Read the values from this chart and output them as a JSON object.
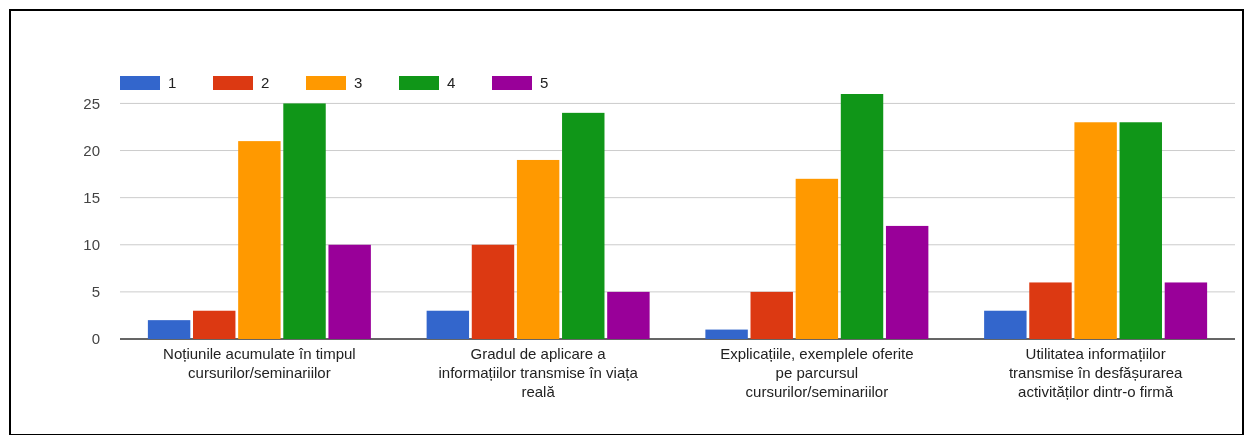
{
  "chart_data": {
    "type": "bar",
    "categories": [
      "Noțiunile acumulate în timpul cursurilor/seminariilor",
      "Gradul de aplicare a informațiilor transmise în viața reală",
      "Explicațiile, exemplele oferite pe parcursul cursurilor/seminariilor",
      "Utilitatea informațiilor transmise în desfășurarea activităților dintr-o firmă"
    ],
    "series": [
      {
        "name": "1",
        "color": "#3366cc",
        "values": [
          2,
          3,
          1,
          3
        ]
      },
      {
        "name": "2",
        "color": "#dc3912",
        "values": [
          3,
          10,
          5,
          6
        ]
      },
      {
        "name": "3",
        "color": "#ff9900",
        "values": [
          21,
          19,
          17,
          23
        ]
      },
      {
        "name": "4",
        "color": "#109618",
        "values": [
          25,
          24,
          26,
          23
        ]
      },
      {
        "name": "5",
        "color": "#990099",
        "values": [
          10,
          5,
          12,
          6
        ]
      }
    ],
    "ylim": [
      0,
      26
    ],
    "yticks": [
      0,
      5,
      10,
      15,
      20,
      25
    ],
    "grid": "y",
    "legend": "top left"
  }
}
